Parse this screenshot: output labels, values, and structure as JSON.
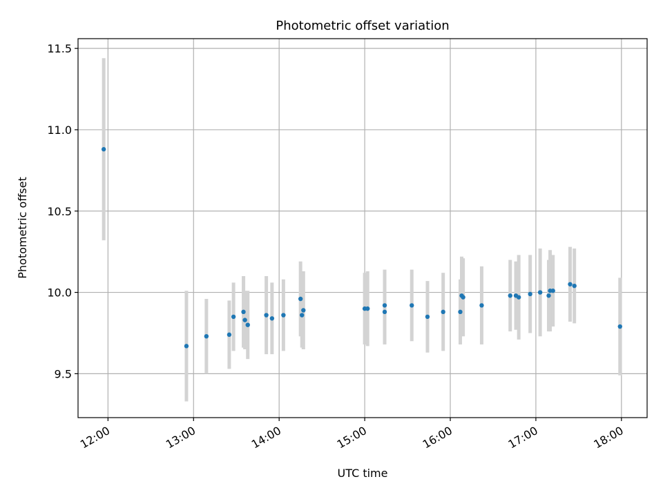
{
  "chart_data": {
    "type": "scatter",
    "title": "Photometric offset variation",
    "xlabel": "UTC time",
    "ylabel": "Photometric offset",
    "x_tick_labels": [
      "12:00",
      "13:00",
      "14:00",
      "15:00",
      "16:00",
      "17:00",
      "18:00"
    ],
    "y_tick_labels": [
      "9.5",
      "10.0",
      "10.5",
      "11.0",
      "11.5"
    ],
    "y_ticks": [
      9.5,
      10.0,
      10.5,
      11.0,
      11.5
    ],
    "x_ticks_hours": [
      12,
      13,
      14,
      15,
      16,
      17,
      18
    ],
    "xlim_hours": [
      11.65,
      18.3
    ],
    "ylim": [
      9.23,
      11.56
    ],
    "grid": true,
    "point_color": "#1f77b4",
    "errorbar_color": "#d3d3d3",
    "points": [
      {
        "time": "11:57",
        "offset": 10.88,
        "err": 0.56
      },
      {
        "time": "12:55",
        "offset": 9.67,
        "err": 0.34
      },
      {
        "time": "13:09",
        "offset": 9.73,
        "err": 0.23
      },
      {
        "time": "13:25",
        "offset": 9.74,
        "err": 0.21
      },
      {
        "time": "13:28",
        "offset": 9.85,
        "err": 0.21
      },
      {
        "time": "13:35",
        "offset": 9.88,
        "err": 0.22
      },
      {
        "time": "13:36",
        "offset": 9.83,
        "err": 0.18
      },
      {
        "time": "13:38",
        "offset": 9.8,
        "err": 0.21
      },
      {
        "time": "13:51",
        "offset": 9.86,
        "err": 0.24
      },
      {
        "time": "13:55",
        "offset": 9.84,
        "err": 0.22
      },
      {
        "time": "14:03",
        "offset": 9.86,
        "err": 0.22
      },
      {
        "time": "14:15",
        "offset": 9.96,
        "err": 0.23
      },
      {
        "time": "14:16",
        "offset": 9.86,
        "err": 0.2
      },
      {
        "time": "14:17",
        "offset": 9.89,
        "err": 0.24
      },
      {
        "time": "15:00",
        "offset": 9.9,
        "err": 0.22
      },
      {
        "time": "15:02",
        "offset": 9.9,
        "err": 0.23
      },
      {
        "time": "15:14",
        "offset": 9.88,
        "err": 0.2
      },
      {
        "time": "15:14",
        "offset": 9.92,
        "err": 0.22
      },
      {
        "time": "15:33",
        "offset": 9.92,
        "err": 0.22
      },
      {
        "time": "15:44",
        "offset": 9.85,
        "err": 0.22
      },
      {
        "time": "15:55",
        "offset": 9.88,
        "err": 0.24
      },
      {
        "time": "16:07",
        "offset": 9.88,
        "err": 0.2
      },
      {
        "time": "16:08",
        "offset": 9.98,
        "err": 0.24
      },
      {
        "time": "16:09",
        "offset": 9.97,
        "err": 0.24
      },
      {
        "time": "16:22",
        "offset": 9.92,
        "err": 0.24
      },
      {
        "time": "16:42",
        "offset": 9.98,
        "err": 0.22
      },
      {
        "time": "16:46",
        "offset": 9.98,
        "err": 0.21
      },
      {
        "time": "16:48",
        "offset": 9.97,
        "err": 0.26
      },
      {
        "time": "16:56",
        "offset": 9.99,
        "err": 0.24
      },
      {
        "time": "17:03",
        "offset": 10.0,
        "err": 0.27
      },
      {
        "time": "17:09",
        "offset": 9.98,
        "err": 0.22
      },
      {
        "time": "17:10",
        "offset": 10.01,
        "err": 0.25
      },
      {
        "time": "17:12",
        "offset": 10.01,
        "err": 0.22
      },
      {
        "time": "17:24",
        "offset": 10.05,
        "err": 0.23
      },
      {
        "time": "17:27",
        "offset": 10.04,
        "err": 0.23
      },
      {
        "time": "17:59",
        "offset": 9.79,
        "err": 0.3
      }
    ]
  }
}
